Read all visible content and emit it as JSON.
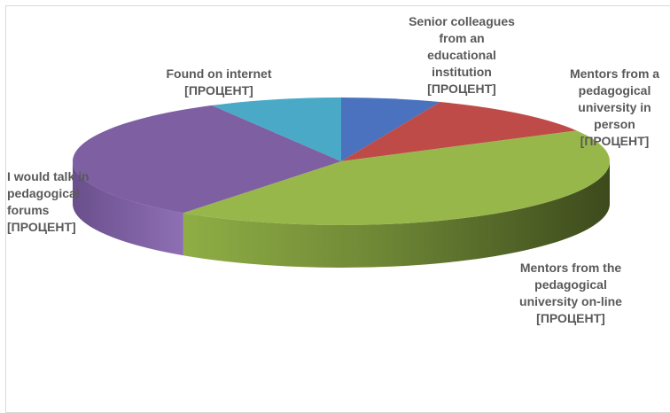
{
  "chart_data": {
    "type": "pie",
    "style": "3d-exploded-view",
    "categories": [
      "Senior colleagues from an educational institution",
      "Mentors from a pedagogical university in person",
      "Mentors from the pedagogical university on-line",
      "I would talk in pedagogical forums",
      "Found on internet"
    ],
    "values": [
      6,
      11,
      43,
      32,
      8
    ],
    "value_unit": "percent (estimated from slice sizes)",
    "data_labels": [
      {
        "text": "Senior colleagues\nfrom an\neducational\ninstitution",
        "value": "[ПРОЦЕНТ]"
      },
      {
        "text": "Mentors from a\npedagogical\nuniversity in\nperson",
        "value": "[ПРОЦЕНТ]"
      },
      {
        "text": "Mentors from the\npedagogical\nuniversity on-line",
        "value": "[ПРОЦЕНТ]"
      },
      {
        "text": "I would talk in\npedagogical\nforums",
        "value": "[ПРОЦЕНТ]"
      },
      {
        "text": "Found on internet",
        "value": "[ПРОЦЕНТ]"
      }
    ],
    "colors": [
      "#4a72be",
      "#be4b48",
      "#98b74b",
      "#7e5fa2",
      "#4aa9c6"
    ],
    "legend": "none",
    "title": ""
  }
}
